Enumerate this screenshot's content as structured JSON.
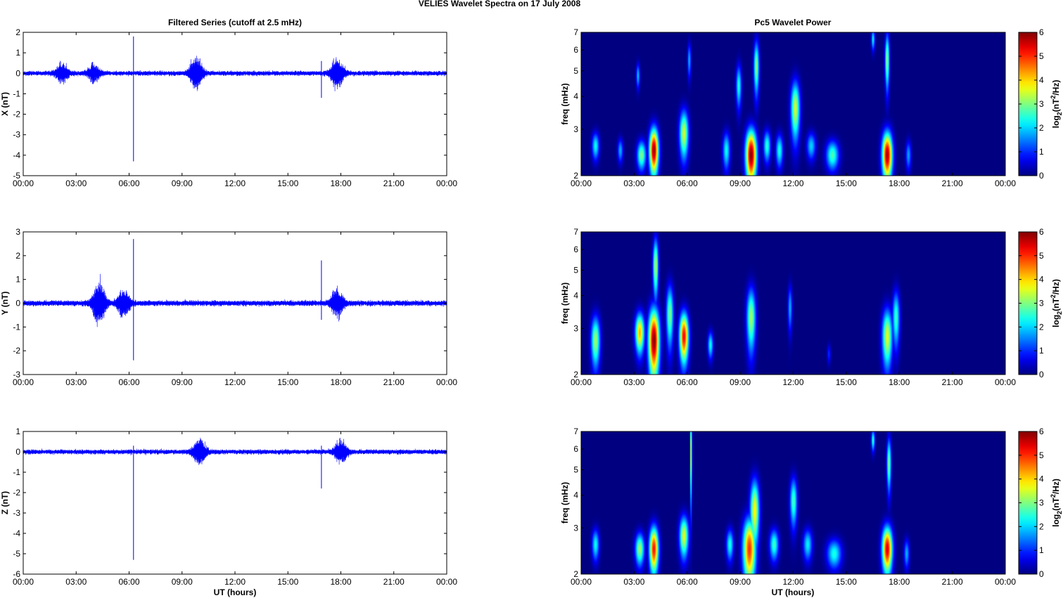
{
  "figure": {
    "suptitle": "VELIES Wavelet Spectra on 17 July      2008",
    "left_title": "Filtered Series (cutoff at 2.5 mHz)",
    "right_title": "Pc5 Wavelet Power",
    "xlabel": "UT (hours)",
    "colorbar_label": "log2(nT2/Hz)",
    "colors": {
      "series": "#0000ff",
      "spectrogram_background": "#00008f",
      "axes": "#000000"
    }
  },
  "chart_data": [
    {
      "type": "line",
      "panel": "left-1",
      "ylabel": "X (nT)",
      "ylim": [
        -5,
        2
      ],
      "yticks": [
        "-5",
        "-4",
        "-3",
        "-2",
        "-1",
        "0",
        "1",
        "2"
      ],
      "x_tick_labels": [
        "00:00",
        "03:00",
        "06:00",
        "09:00",
        "12:00",
        "15:00",
        "18:00",
        "21:00",
        "00:00"
      ],
      "xlim": [
        0,
        24
      ],
      "series": [
        {
          "values_summary": "oscillating around 0 nT with amplitude about 0.2 nT",
          "spikes": [
            {
              "x": 6.25,
              "min": -4.3,
              "max": 1.8
            },
            {
              "x": 16.9,
              "min": -1.2,
              "max": 0.6
            }
          ],
          "bursts": [
            {
              "x": 2.2,
              "amp": 0.5
            },
            {
              "x": 4.0,
              "amp": 0.4
            },
            {
              "x": 9.8,
              "amp": 0.9
            },
            {
              "x": 17.8,
              "amp": 0.8
            }
          ]
        }
      ]
    },
    {
      "type": "line",
      "panel": "left-2",
      "ylabel": "Y (nT)",
      "ylim": [
        -3,
        3
      ],
      "yticks": [
        "-3",
        "-2",
        "-1",
        "0",
        "1",
        "2",
        "3"
      ],
      "x_tick_labels": [
        "00:00",
        "03:00",
        "06:00",
        "09:00",
        "12:00",
        "15:00",
        "18:00",
        "21:00",
        "00:00"
      ],
      "xlim": [
        0,
        24
      ],
      "series": [
        {
          "values_summary": "oscillating around 0 nT with amplitude about 0.15 nT",
          "spikes": [
            {
              "x": 6.25,
              "min": -2.4,
              "max": 2.7
            },
            {
              "x": 16.9,
              "min": -0.7,
              "max": 1.8
            }
          ],
          "bursts": [
            {
              "x": 4.3,
              "amp": 1.0
            },
            {
              "x": 5.7,
              "amp": 0.6
            },
            {
              "x": 17.8,
              "amp": 0.6
            }
          ]
        }
      ]
    },
    {
      "type": "line",
      "panel": "left-3",
      "ylabel": "Z (nT)",
      "ylim": [
        -6,
        1
      ],
      "yticks": [
        "-6",
        "-5",
        "-4",
        "-3",
        "-2",
        "-1",
        "0",
        "1"
      ],
      "x_tick_labels": [
        "00:00",
        "03:00",
        "06:00",
        "09:00",
        "12:00",
        "15:00",
        "18:00",
        "21:00",
        "00:00"
      ],
      "xlim": [
        0,
        24
      ],
      "series": [
        {
          "values_summary": "oscillating around 0 nT with amplitude about 0.15 nT",
          "spikes": [
            {
              "x": 6.25,
              "min": -5.3,
              "max": 0.3
            },
            {
              "x": 16.9,
              "min": -1.8,
              "max": 0.3
            }
          ],
          "bursts": [
            {
              "x": 10.0,
              "amp": 0.7
            },
            {
              "x": 18.0,
              "amp": 0.6
            }
          ]
        }
      ]
    },
    {
      "type": "heatmap",
      "panel": "right-1",
      "title": "Pc5 Wavelet Power",
      "ylabel": "freq (mHz)",
      "yscale": "log",
      "ylim": [
        2,
        7
      ],
      "yticks": [
        "2",
        "3",
        "4",
        "5",
        "6",
        "7"
      ],
      "x_tick_labels": [
        "00:00",
        "03:00",
        "06:00",
        "09:00",
        "12:00",
        "15:00",
        "18:00",
        "21:00",
        "00:00"
      ],
      "xlim": [
        0,
        24
      ],
      "clim": [
        0,
        6
      ],
      "colorbar_ticks": [
        "0",
        "1",
        "2",
        "3",
        "4",
        "5",
        "6"
      ],
      "blobs": [
        {
          "t": 0.8,
          "f": 2.6,
          "dt": 0.2,
          "df": 0.3,
          "p": 2.3
        },
        {
          "t": 2.2,
          "f": 2.5,
          "dt": 0.15,
          "df": 0.25,
          "p": 1.8
        },
        {
          "t": 3.2,
          "f": 4.8,
          "dt": 0.1,
          "df": 0.5,
          "p": 1.9
        },
        {
          "t": 3.4,
          "f": 2.4,
          "dt": 0.25,
          "df": 0.3,
          "p": 3.0
        },
        {
          "t": 4.1,
          "f": 2.5,
          "dt": 0.25,
          "df": 0.5,
          "p": 5.9
        },
        {
          "t": 5.8,
          "f": 2.9,
          "dt": 0.25,
          "df": 0.6,
          "p": 3.5
        },
        {
          "t": 6.1,
          "f": 5.5,
          "dt": 0.1,
          "df": 0.8,
          "p": 1.8
        },
        {
          "t": 8.2,
          "f": 2.5,
          "dt": 0.2,
          "df": 0.4,
          "p": 2.3
        },
        {
          "t": 8.9,
          "f": 4.4,
          "dt": 0.15,
          "df": 0.8,
          "p": 2.4
        },
        {
          "t": 9.6,
          "f": 2.4,
          "dt": 0.3,
          "df": 0.55,
          "p": 6.0
        },
        {
          "t": 9.9,
          "f": 5.2,
          "dt": 0.15,
          "df": 1.2,
          "p": 3.0
        },
        {
          "t": 10.5,
          "f": 2.6,
          "dt": 0.2,
          "df": 0.35,
          "p": 2.5
        },
        {
          "t": 11.2,
          "f": 2.5,
          "dt": 0.2,
          "df": 0.35,
          "p": 2.4
        },
        {
          "t": 12.1,
          "f": 3.6,
          "dt": 0.25,
          "df": 0.9,
          "p": 3.5
        },
        {
          "t": 13.0,
          "f": 2.6,
          "dt": 0.25,
          "df": 0.3,
          "p": 2.0
        },
        {
          "t": 14.2,
          "f": 2.4,
          "dt": 0.35,
          "df": 0.3,
          "p": 2.7
        },
        {
          "t": 16.5,
          "f": 6.6,
          "dt": 0.1,
          "df": 0.6,
          "p": 2.2
        },
        {
          "t": 17.3,
          "f": 2.4,
          "dt": 0.28,
          "df": 0.5,
          "p": 5.8
        },
        {
          "t": 17.3,
          "f": 5.5,
          "dt": 0.12,
          "df": 1.3,
          "p": 3.2
        },
        {
          "t": 18.5,
          "f": 2.4,
          "dt": 0.15,
          "df": 0.3,
          "p": 1.7
        }
      ]
    },
    {
      "type": "heatmap",
      "panel": "right-2",
      "ylabel": "freq (mHz)",
      "yscale": "log",
      "ylim": [
        2,
        7
      ],
      "yticks": [
        "2",
        "3",
        "4",
        "5",
        "6",
        "7"
      ],
      "x_tick_labels": [
        "00:00",
        "03:00",
        "06:00",
        "09:00",
        "12:00",
        "15:00",
        "18:00",
        "21:00",
        "00:00"
      ],
      "xlim": [
        0,
        24
      ],
      "clim": [
        0,
        6
      ],
      "colorbar_ticks": [
        "0",
        "1",
        "2",
        "3",
        "4",
        "5",
        "6"
      ],
      "blobs": [
        {
          "t": 0.8,
          "f": 2.7,
          "dt": 0.25,
          "df": 0.6,
          "p": 3.2
        },
        {
          "t": 3.3,
          "f": 2.9,
          "dt": 0.25,
          "df": 0.5,
          "p": 4.2
        },
        {
          "t": 4.1,
          "f": 2.7,
          "dt": 0.3,
          "df": 0.8,
          "p": 6.0
        },
        {
          "t": 4.2,
          "f": 5.2,
          "dt": 0.15,
          "df": 1.3,
          "p": 3.4
        },
        {
          "t": 5.0,
          "f": 3.4,
          "dt": 0.2,
          "df": 0.9,
          "p": 3.0
        },
        {
          "t": 5.8,
          "f": 2.8,
          "dt": 0.25,
          "df": 0.6,
          "p": 5.3
        },
        {
          "t": 7.3,
          "f": 2.6,
          "dt": 0.15,
          "df": 0.3,
          "p": 2.3
        },
        {
          "t": 9.6,
          "f": 3.3,
          "dt": 0.25,
          "df": 0.9,
          "p": 3.2
        },
        {
          "t": 11.8,
          "f": 3.6,
          "dt": 0.12,
          "df": 0.7,
          "p": 1.8
        },
        {
          "t": 14.0,
          "f": 2.4,
          "dt": 0.1,
          "df": 0.2,
          "p": 1.0
        },
        {
          "t": 17.3,
          "f": 2.8,
          "dt": 0.28,
          "df": 0.7,
          "p": 3.6
        },
        {
          "t": 17.8,
          "f": 3.3,
          "dt": 0.2,
          "df": 0.8,
          "p": 2.6
        }
      ]
    },
    {
      "type": "heatmap",
      "panel": "right-3",
      "ylabel": "freq (mHz)",
      "yscale": "log",
      "ylim": [
        2,
        7
      ],
      "yticks": [
        "2",
        "3",
        "4",
        "5",
        "6",
        "7"
      ],
      "x_tick_labels": [
        "00:00",
        "03:00",
        "06:00",
        "09:00",
        "12:00",
        "15:00",
        "18:00",
        "21:00",
        "00:00"
      ],
      "xlim": [
        0,
        24
      ],
      "clim": [
        0,
        6
      ],
      "colorbar_ticks": [
        "0",
        "1",
        "2",
        "3",
        "4",
        "5",
        "6"
      ],
      "blobs": [
        {
          "t": 0.8,
          "f": 2.6,
          "dt": 0.2,
          "df": 0.35,
          "p": 2.3
        },
        {
          "t": 3.3,
          "f": 2.5,
          "dt": 0.25,
          "df": 0.35,
          "p": 3.2
        },
        {
          "t": 4.1,
          "f": 2.5,
          "dt": 0.25,
          "df": 0.5,
          "p": 5.2
        },
        {
          "t": 5.8,
          "f": 2.8,
          "dt": 0.25,
          "df": 0.5,
          "p": 3.6
        },
        {
          "t": 6.2,
          "f": 5.8,
          "dt": 0.05,
          "df": 2.2,
          "p": 4.1
        },
        {
          "t": 8.4,
          "f": 2.6,
          "dt": 0.2,
          "df": 0.35,
          "p": 2.4
        },
        {
          "t": 9.5,
          "f": 2.5,
          "dt": 0.35,
          "df": 0.7,
          "p": 5.0
        },
        {
          "t": 9.8,
          "f": 3.5,
          "dt": 0.25,
          "df": 1.0,
          "p": 3.8
        },
        {
          "t": 10.9,
          "f": 2.6,
          "dt": 0.25,
          "df": 0.35,
          "p": 2.6
        },
        {
          "t": 12.0,
          "f": 3.8,
          "dt": 0.2,
          "df": 0.8,
          "p": 2.7
        },
        {
          "t": 12.8,
          "f": 2.6,
          "dt": 0.25,
          "df": 0.35,
          "p": 2.2
        },
        {
          "t": 14.3,
          "f": 2.4,
          "dt": 0.4,
          "df": 0.3,
          "p": 2.4
        },
        {
          "t": 16.5,
          "f": 6.5,
          "dt": 0.1,
          "df": 0.6,
          "p": 2.5
        },
        {
          "t": 17.3,
          "f": 2.5,
          "dt": 0.28,
          "df": 0.5,
          "p": 5.5
        },
        {
          "t": 17.4,
          "f": 5.3,
          "dt": 0.12,
          "df": 1.2,
          "p": 3.0
        },
        {
          "t": 18.4,
          "f": 2.4,
          "dt": 0.15,
          "df": 0.3,
          "p": 1.8
        }
      ]
    }
  ]
}
